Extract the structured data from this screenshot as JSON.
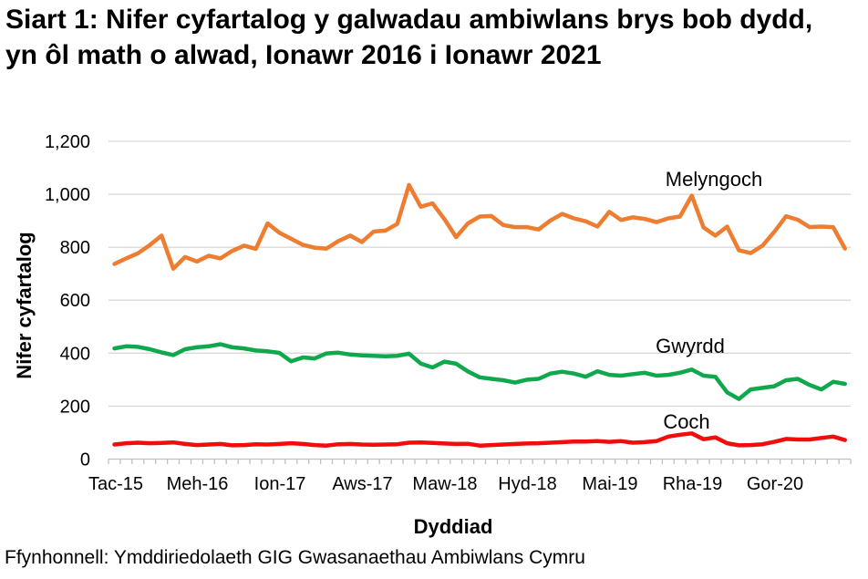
{
  "page": {
    "title": "Siart 1: Nifer cyfartalog y galwadau ambiwlans brys bob dydd, yn ôl math o alwad, Ionawr 2016 i Ionawr 2021",
    "source": "Ffynhonnell: Ymddiriedolaeth GIG Gwasanaethau Ambiwlans Cymru"
  },
  "chart_data": {
    "type": "line",
    "title": "Siart 1: Nifer cyfartalog y galwadau ambiwlans brys bob dydd, yn ôl math o alwad, Ionawr 2016 i Ionawr 2021",
    "xlabel": "Dyddiad",
    "ylabel": "Nifer cyfartalog",
    "ylim": [
      0,
      1200
    ],
    "ytick_step": 200,
    "grid": true,
    "legend_position": "inline-labels-right",
    "ytick_labels": [
      "1,200",
      "1,000",
      "800",
      "600",
      "400",
      "200",
      "0"
    ],
    "xtick_labels": [
      "Tac-15",
      "Meh-16",
      "Ion-17",
      "Aws-17",
      "Maw-18",
      "Hyd-18",
      "Mai-19",
      "Rha-19",
      "Gor-20"
    ],
    "categories": [
      "Tac-15",
      "Rha-15",
      "Ion-16",
      "Chw-16",
      "Maw-16",
      "Ebr-16",
      "Mai-16",
      "Meh-16",
      "Gor-16",
      "Aws-16",
      "Med-16",
      "Hyd-16",
      "Tac-16",
      "Rha-16",
      "Ion-17",
      "Chw-17",
      "Maw-17",
      "Ebr-17",
      "Mai-17",
      "Meh-17",
      "Gor-17",
      "Aws-17",
      "Med-17",
      "Hyd-17",
      "Tac-17",
      "Rha-17",
      "Ion-18",
      "Chw-18",
      "Maw-18",
      "Ebr-18",
      "Mai-18",
      "Meh-18",
      "Gor-18",
      "Aws-18",
      "Med-18",
      "Hyd-18",
      "Tac-18",
      "Rha-18",
      "Ion-19",
      "Chw-19",
      "Maw-19",
      "Ebr-19",
      "Mai-19",
      "Meh-19",
      "Gor-19",
      "Aws-19",
      "Med-19",
      "Hyd-19",
      "Tac-19",
      "Rha-19",
      "Ion-20",
      "Chw-20",
      "Maw-20",
      "Ebr-20",
      "Mai-20",
      "Meh-20",
      "Gor-20",
      "Aws-20",
      "Med-20",
      "Hyd-20",
      "Tac-20",
      "Rha-20",
      "Ion-21"
    ],
    "series": [
      {
        "id": "melyngoch",
        "name": "Melyngoch",
        "color": "#ED7D31",
        "values": [
          737,
          758,
          777,
          808,
          844,
          719,
          763,
          746,
          768,
          758,
          786,
          806,
          794,
          890,
          855,
          832,
          809,
          798,
          795,
          823,
          844,
          820,
          859,
          863,
          888,
          1035,
          953,
          966,
          907,
          838,
          890,
          916,
          918,
          884,
          876,
          876,
          867,
          901,
          926,
          909,
          898,
          878,
          934,
          903,
          913,
          907,
          895,
          909,
          916,
          995,
          875,
          844,
          878,
          789,
          778,
          806,
          858,
          917,
          904,
          876,
          878,
          876,
          795
        ]
      },
      {
        "id": "gwyrdd",
        "name": "Gwyrdd",
        "color": "#10A84D",
        "values": [
          418,
          426,
          424,
          415,
          403,
          393,
          415,
          422,
          426,
          434,
          422,
          418,
          410,
          407,
          401,
          369,
          384,
          380,
          399,
          402,
          395,
          392,
          390,
          388,
          390,
          398,
          361,
          346,
          368,
          360,
          331,
          309,
          303,
          298,
          289,
          300,
          303,
          323,
          330,
          323,
          311,
          332,
          318,
          315,
          321,
          326,
          315,
          318,
          326,
          338,
          315,
          311,
          252,
          227,
          263,
          269,
          275,
          298,
          303,
          280,
          263,
          292,
          284
        ]
      },
      {
        "id": "coch",
        "name": "Coch",
        "color": "#F20D0D",
        "values": [
          55,
          60,
          62,
          60,
          61,
          63,
          57,
          53,
          55,
          57,
          52,
          53,
          56,
          55,
          57,
          60,
          57,
          53,
          51,
          56,
          57,
          55,
          54,
          55,
          56,
          62,
          63,
          61,
          59,
          57,
          58,
          51,
          53,
          55,
          57,
          59,
          60,
          62,
          64,
          66,
          66,
          68,
          65,
          68,
          62,
          64,
          68,
          85,
          92,
          97,
          75,
          82,
          60,
          52,
          53,
          56,
          65,
          76,
          74,
          74,
          80,
          85,
          72
        ]
      }
    ],
    "source": "Ffynhonnell: Ymddiriedolaeth GIG Gwasanaethau Ambiwlans Cymru"
  }
}
